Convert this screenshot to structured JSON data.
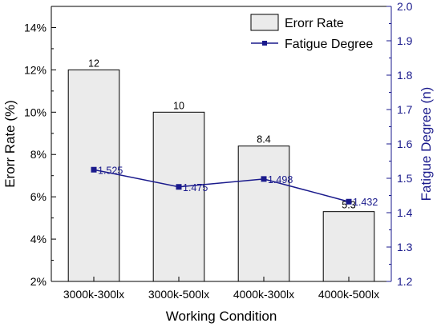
{
  "chart_data": {
    "type": "bar",
    "categories": [
      "3000k-300lx",
      "3000k-500lx",
      "4000k-300lx",
      "4000k-500lx"
    ],
    "series": [
      {
        "name": "Erorr Rate",
        "type": "bar",
        "axis": "left",
        "values": [
          12,
          10,
          8.4,
          5.3
        ],
        "labels": [
          "12",
          "10",
          "8.4",
          "5.3"
        ]
      },
      {
        "name": "Fatigue Degree",
        "type": "line",
        "axis": "right",
        "values": [
          1.525,
          1.475,
          1.498,
          1.432
        ],
        "labels": [
          "1.525",
          "1.475",
          "1.498",
          "1.432"
        ]
      }
    ],
    "xlabel": "Working Condition",
    "ylabel": "Erorr Rate (%)",
    "ylabel_right": "Fatigue Degree (n)",
    "ylim": [
      2,
      15
    ],
    "ylim_right": [
      1.2,
      2.0
    ],
    "yticks": [
      "2%",
      "4%",
      "6%",
      "8%",
      "10%",
      "12%",
      "14%"
    ],
    "yticks_right": [
      "1.2",
      "1.3",
      "1.4",
      "1.5",
      "1.6",
      "1.7",
      "1.8",
      "1.9",
      "2.0"
    ],
    "legend": "top-right",
    "grid": false,
    "colors": {
      "bar_fill": "#ebebeb",
      "bar_stroke": "#000000",
      "line": "#1a1a8c",
      "right_axis": "#1a1a8c"
    }
  }
}
